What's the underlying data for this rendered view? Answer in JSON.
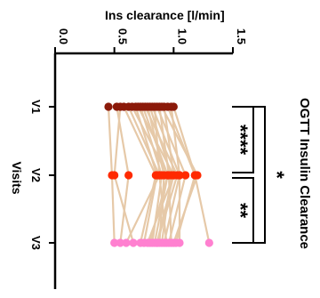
{
  "chart_data": {
    "type": "line",
    "orientation": "rotated-90-clockwise",
    "title": "OGTT Insulin Clearance",
    "ylabel": "Ins clearance [l/min]",
    "xlabel": "Visits",
    "ylim": [
      0,
      1.5
    ],
    "yticks": [
      "0.0",
      "0.5",
      "1.0",
      "1.5"
    ],
    "categories": [
      "V1",
      "V2",
      "V3"
    ],
    "colors": {
      "V1": "#8b1a0a",
      "V2": "#ff2a00",
      "V3": "#ff80d0",
      "lines": "#e6c9a8"
    },
    "subjects": [
      [
        0.45,
        0.48,
        0.5
      ],
      [
        0.52,
        0.62,
        0.55
      ],
      [
        0.55,
        0.5,
        0.66
      ],
      [
        0.58,
        0.85,
        0.72
      ],
      [
        0.62,
        0.88,
        0.6
      ],
      [
        0.65,
        0.95,
        0.8
      ],
      [
        0.68,
        0.86,
        0.75
      ],
      [
        0.7,
        1.0,
        0.78
      ],
      [
        0.72,
        0.9,
        0.82
      ],
      [
        0.74,
        0.95,
        0.84
      ],
      [
        0.76,
        1.03,
        0.86
      ],
      [
        0.78,
        0.92,
        0.88
      ],
      [
        0.8,
        0.98,
        0.9
      ],
      [
        0.82,
        1.05,
        0.92
      ],
      [
        0.84,
        0.88,
        0.94
      ],
      [
        0.86,
        1.1,
        0.96
      ],
      [
        0.88,
        0.96,
        0.98
      ],
      [
        0.9,
        1.2,
        1.0
      ],
      [
        0.92,
        1.0,
        0.86
      ],
      [
        0.95,
        1.18,
        1.02
      ],
      [
        0.98,
        1.05,
        1.05
      ],
      [
        1.0,
        1.18,
        1.3
      ]
    ],
    "annotations": [
      {
        "from": "V1",
        "to": "V2",
        "label": "****"
      },
      {
        "from": "V2",
        "to": "V3",
        "label": "**"
      },
      {
        "from": "V1",
        "to": "V3",
        "label": "*"
      }
    ]
  }
}
